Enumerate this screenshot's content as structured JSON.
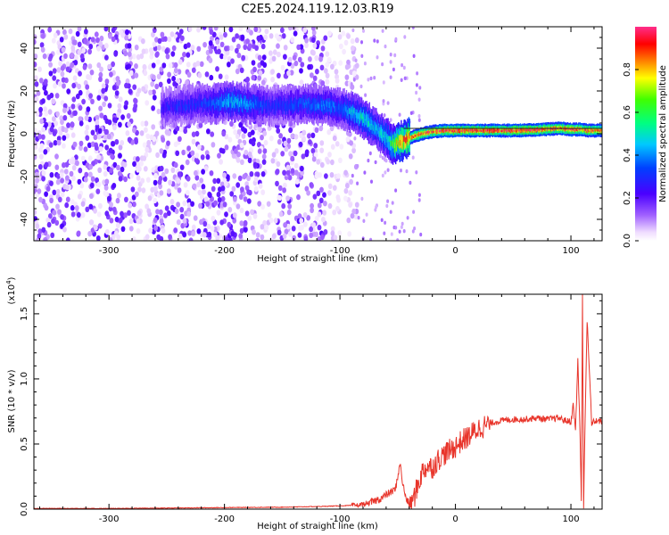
{
  "title": "C2E5.2024.119.12.03.R19",
  "chart_data": [
    {
      "type": "heatmap",
      "xlabel": "Height of straight line (km)",
      "ylabel": "Frequency (Hz)",
      "xlim": [
        -365,
        127
      ],
      "ylim": [
        -50,
        50
      ],
      "xticks": [
        -300,
        -200,
        -100,
        0,
        100
      ],
      "yticks": [
        -40,
        -20,
        0,
        20,
        40
      ],
      "xtick_labels": [
        "-300",
        "-200",
        "-100",
        "0",
        "100"
      ],
      "ytick_labels": [
        "-40",
        "-20",
        "0",
        "20",
        "40"
      ],
      "colorbar": {
        "label": "Normalized spectral amplitude",
        "range": [
          0,
          1
        ],
        "ticks": [
          0.0,
          0.2,
          0.4,
          0.6,
          0.8
        ],
        "tick_labels": [
          "0.0",
          "0.2",
          "0.4",
          "0.6",
          "0.8"
        ],
        "colormap": "rainbow (white-purple-blue-cyan-green-yellow-red-magenta)"
      },
      "noise_region_x": [
        -365,
        -85
      ],
      "signal_trace": {
        "x": [
          -255,
          -240,
          -225,
          -210,
          -195,
          -180,
          -160,
          -130,
          -110,
          -100,
          -90,
          -80,
          -70,
          -60,
          -55,
          -50,
          -45,
          -40,
          -30,
          -20,
          -10,
          0,
          10,
          30,
          50,
          70,
          90,
          100,
          108,
          115,
          127
        ],
        "freq": [
          12,
          13,
          14,
          14,
          15,
          14,
          13,
          14,
          13,
          12,
          10,
          7,
          3,
          -2,
          -5,
          -4,
          -3,
          -2,
          0,
          1,
          1.5,
          1.5,
          1.5,
          1.5,
          1.5,
          1.8,
          2.5,
          2,
          2,
          1.5,
          1.5
        ],
        "amplitude": [
          0.25,
          0.3,
          0.3,
          0.35,
          0.45,
          0.4,
          0.3,
          0.35,
          0.4,
          0.35,
          0.45,
          0.5,
          0.45,
          0.5,
          0.6,
          0.8,
          0.85,
          0.9,
          0.9,
          0.9,
          0.95,
          0.95,
          0.95,
          0.95,
          0.95,
          0.95,
          0.9,
          0.95,
          0.9,
          0.9,
          0.9
        ]
      },
      "horizontal_line_freq": 2.5
    },
    {
      "type": "line",
      "xlabel": "Height of straight line (km)",
      "ylabel": "SNR (10 * v/v)",
      "ylabel_scale": "(x10^4)",
      "xlim": [
        -365,
        127
      ],
      "ylim": [
        0,
        1.65
      ],
      "xticks": [
        -300,
        -200,
        -100,
        0,
        100
      ],
      "yticks": [
        0.0,
        0.5,
        1.0,
        1.5
      ],
      "xtick_labels": [
        "-300",
        "-200",
        "-100",
        "0",
        "100"
      ],
      "ytick_labels": [
        "0.0",
        "0.5",
        "1.0",
        "1.5"
      ],
      "series": [
        {
          "color": "#e8342a",
          "x": [
            -365,
            -300,
            -250,
            -200,
            -150,
            -120,
            -100,
            -85,
            -75,
            -65,
            -58,
            -52,
            -48,
            -46,
            -44,
            -42,
            -40,
            -36,
            -32,
            -28,
            -24,
            -20,
            -15,
            -10,
            -5,
            0,
            5,
            10,
            20,
            30,
            40,
            50,
            60,
            70,
            80,
            90,
            95,
            100,
            102,
            104,
            106,
            108,
            109,
            110,
            111,
            112,
            114,
            118,
            122,
            127
          ],
          "y": [
            0.005,
            0.005,
            0.008,
            0.012,
            0.015,
            0.02,
            0.025,
            0.03,
            0.045,
            0.08,
            0.12,
            0.15,
            0.35,
            0.22,
            0.12,
            0.07,
            0.04,
            0.08,
            0.2,
            0.3,
            0.33,
            0.32,
            0.38,
            0.42,
            0.45,
            0.48,
            0.52,
            0.55,
            0.62,
            0.66,
            0.68,
            0.69,
            0.69,
            0.7,
            0.69,
            0.7,
            0.68,
            0.67,
            0.8,
            0.6,
            1.15,
            0.55,
            0.05,
            1.65,
            0.02,
            0.55,
            1.45,
            0.66,
            0.68,
            0.67
          ]
        }
      ]
    }
  ]
}
